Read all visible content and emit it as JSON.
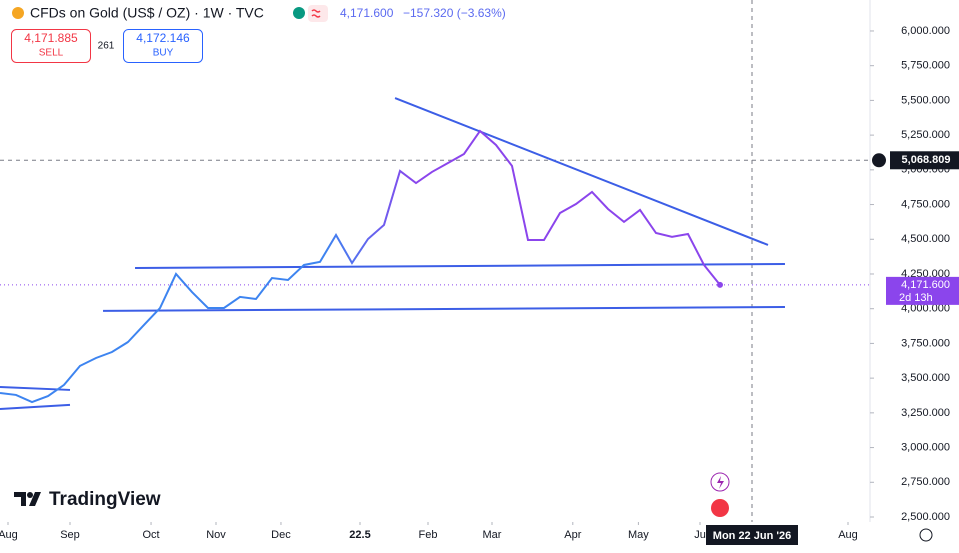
{
  "header": {
    "symbol": "CFDs on Gold (US$ / OZ) · 1W · TVC",
    "change": "−157.320 (−3.63%)",
    "sell": "4,171.885",
    "sell_label": "SELL",
    "spread": "261",
    "buy": "4,172.146",
    "buy_label": "BUY",
    "brand": "TradingView"
  },
  "chart_data": {
    "type": "line",
    "x": [
      0,
      1,
      2,
      3,
      4,
      5,
      6,
      7,
      8,
      9,
      10,
      11,
      12,
      13,
      14,
      15,
      16,
      17,
      18,
      19,
      20,
      21,
      22,
      23,
      24,
      25,
      26,
      27,
      28,
      29,
      30,
      31,
      32,
      33,
      34,
      35,
      36,
      37,
      38,
      39,
      40,
      41,
      42,
      43,
      44,
      45
    ],
    "series": [
      {
        "name": "CFDs on Gold",
        "colors": [
          "#3d84f0",
          "#8b45ec"
        ],
        "values": [
          3393,
          3379,
          3328,
          3371,
          3451,
          3588,
          3645,
          3688,
          3760,
          3883,
          4005,
          4250,
          4120,
          4005,
          4005,
          4085,
          4070,
          4221,
          4207,
          4315,
          4337,
          4531,
          4329,
          4502,
          4603,
          4992,
          4905,
          4985,
          5049,
          5114,
          5280,
          5179,
          5028,
          4495,
          4495,
          4689,
          4754,
          4841,
          4718,
          4625,
          4711,
          4545,
          4517,
          4538,
          4315,
          4171.6
        ]
      }
    ],
    "trendlines": {
      "color": "#3c5ee6",
      "lines": [
        {
          "x": [
            24.69,
            48
          ],
          "y": [
            5517,
            4459
          ]
        },
        {
          "x": [
            8.44,
            49.06
          ],
          "y": [
            4293,
            4322
          ]
        },
        {
          "x": [
            6.44,
            49.06
          ],
          "y": [
            3984,
            4012
          ]
        },
        {
          "x": [
            0,
            4.375
          ],
          "y": [
            3436,
            3415
          ]
        },
        {
          "x": [
            0,
            4.375
          ],
          "y": [
            3278,
            3307
          ]
        }
      ]
    },
    "xlim": [
      0,
      54.375
    ],
    "ylim": [
      2464,
      6223
    ],
    "xticks": [
      {
        "value": 0.5,
        "label": "Aug"
      },
      {
        "value": 4.375,
        "label": "Sep"
      },
      {
        "value": 9.44,
        "label": "Oct"
      },
      {
        "value": 13.5,
        "label": "Nov"
      },
      {
        "value": 17.56,
        "label": "Dec"
      },
      22.5,
      {
        "value": 26.75,
        "label": "Feb"
      },
      {
        "value": 30.75,
        "label": "Mar"
      },
      {
        "value": 35.8,
        "label": "Apr"
      },
      {
        "value": 39.9,
        "label": "May"
      },
      {
        "value": 43.75,
        "label": "Ju"
      },
      {
        "value": 53,
        "label": "Aug"
      }
    ],
    "yticks": [
      {
        "value": 2500,
        "label": "2,500.000"
      },
      {
        "value": 2750,
        "label": "2,750.000"
      },
      {
        "value": 3000,
        "label": "3,000.000"
      },
      {
        "value": 3250,
        "label": "3,250.000"
      },
      {
        "value": 3500,
        "label": "3,500.000"
      },
      {
        "value": 3750,
        "label": "3,750.000"
      },
      {
        "value": 4000,
        "label": "4,000.000"
      },
      {
        "value": 4250,
        "label": "4,250.000"
      },
      {
        "value": 4500,
        "label": "4,500.000"
      },
      {
        "value": 4750,
        "label": "4,750.000"
      },
      {
        "value": 5000,
        "label": "5,000.000"
      },
      {
        "value": 5250,
        "label": "5,250.000"
      },
      {
        "value": 5500,
        "label": "5,500.000"
      },
      {
        "value": 5750,
        "label": "5,750.000"
      },
      {
        "value": 6000,
        "label": "6,000.000"
      }
    ],
    "price_label": {
      "value": 4171.6,
      "label": "4,171.600",
      "countdown": "2d 13h",
      "color": "#8b45ec"
    },
    "hline": {
      "value": 5068.809,
      "label": "5,068.809"
    },
    "crosshair": {
      "x": 47,
      "label": "Mon 22 Jun '26"
    }
  }
}
